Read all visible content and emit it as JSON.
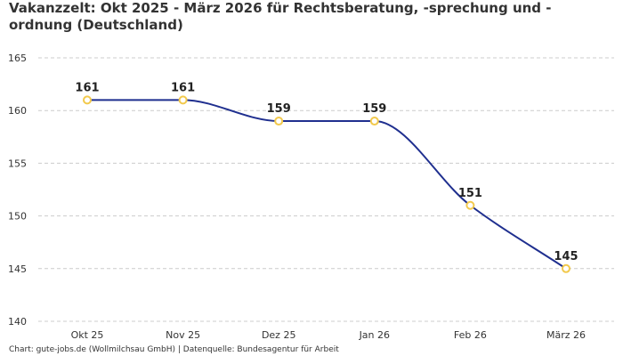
{
  "header": {
    "title": "Vakanzzelt: Okt 2025 - März 2026 für Rechtsberatung, -sprechung und -ordnung (Deutschland)"
  },
  "footer": {
    "credit": "Chart: gute-jobs.de (Wollmilchsau GmbH) | Datenquelle: Bundesagentur für Arbeit"
  },
  "colors": {
    "line": "#1f2f8f",
    "marker_stroke": "#f2c94c",
    "marker_fill": "#ffffff",
    "grid": "#cccccc",
    "text": "#333333"
  },
  "chart_data": {
    "type": "line",
    "title": "Vakanzzelt: Okt 2025 - März 2026 für Rechtsberatung, -sprechung und -ordnung (Deutschland)",
    "xlabel": "",
    "ylabel": "",
    "categories": [
      "Okt 25",
      "Nov 25",
      "Dez 25",
      "Jan 26",
      "Feb 26",
      "März 26"
    ],
    "values": [
      161,
      161,
      159,
      159,
      151,
      145
    ],
    "data_labels": [
      "161",
      "161",
      "159",
      "159",
      "151",
      "145"
    ],
    "ylim": [
      140,
      165
    ],
    "yticks": [
      140,
      145,
      150,
      155,
      160,
      165
    ],
    "ytick_labels": [
      "140",
      "145",
      "150",
      "155",
      "160",
      "165"
    ],
    "grid": true,
    "grid_style": "dashed-horizontal",
    "line_style": "smooth",
    "legend": false
  }
}
